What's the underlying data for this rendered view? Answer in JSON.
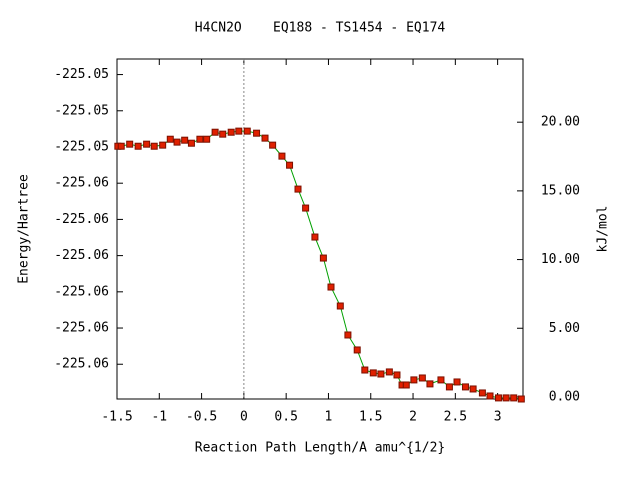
{
  "chart_data": {
    "type": "line",
    "title": "H4CN2O    EQ188 - TS1454 - EQ174",
    "xlabel": "Reaction Path Length/A amu^{1/2}",
    "ylabel": "Energy/Hartree",
    "y2label": "kJ/mol",
    "xlim": [
      -1.5,
      3.3
    ],
    "xticks": [
      -1.5,
      -1,
      -0.5,
      0,
      0.5,
      1,
      1.5,
      2,
      2.5,
      3
    ],
    "ylim": [
      -225.06096,
      -225.05157
    ],
    "yticks": [
      {
        "value": -225.052,
        "label": "-225.05"
      },
      {
        "value": -225.053,
        "label": "-225.05"
      },
      {
        "value": -225.054,
        "label": "-225.05"
      },
      {
        "value": -225.055,
        "label": "-225.06"
      },
      {
        "value": -225.056,
        "label": "-225.06"
      },
      {
        "value": -225.057,
        "label": "-225.06"
      },
      {
        "value": -225.058,
        "label": "-225.06"
      },
      {
        "value": -225.059,
        "label": "-225.06"
      },
      {
        "value": -225.06,
        "label": "-225.06"
      }
    ],
    "y2lim": [
      -0.15,
      24.6
    ],
    "y2ticks": [
      {
        "value": 0,
        "label": "0.00"
      },
      {
        "value": 5,
        "label": "5.00"
      },
      {
        "value": 10,
        "label": "10.00"
      },
      {
        "value": 15,
        "label": "15.00"
      },
      {
        "value": 20,
        "label": "20.00"
      }
    ],
    "reference_line_x": 0,
    "series": [
      {
        "axis": "y2",
        "color": "#00a000",
        "marker_color": "#e02000",
        "x": [
          -1.49,
          -1.45,
          -1.35,
          -1.25,
          -1.15,
          -1.06,
          -0.96,
          -0.87,
          -0.79,
          -0.7,
          -0.62,
          -0.52,
          -0.44,
          -0.34,
          -0.25,
          -0.15,
          -0.06,
          0.04,
          0.15,
          0.25,
          0.34,
          0.45,
          0.54,
          0.64,
          0.73,
          0.84,
          0.94,
          1.03,
          1.14,
          1.23,
          1.34,
          1.43,
          1.53,
          1.62,
          1.72,
          1.81,
          1.87,
          1.92,
          2.01,
          2.11,
          2.2,
          2.33,
          2.43,
          2.52,
          2.62,
          2.71,
          2.82,
          2.91,
          3.01,
          3.1,
          3.19,
          3.28
        ],
        "values": [
          18.25,
          18.25,
          18.4,
          18.25,
          18.4,
          18.25,
          18.33,
          18.76,
          18.55,
          18.69,
          18.47,
          18.76,
          18.76,
          19.27,
          19.13,
          19.27,
          19.35,
          19.35,
          19.2,
          18.84,
          18.33,
          17.53,
          16.87,
          15.13,
          13.75,
          11.64,
          10.11,
          8.0,
          6.62,
          4.51,
          3.42,
          1.96,
          1.75,
          1.67,
          1.82,
          1.6,
          0.87,
          0.87,
          1.24,
          1.38,
          0.95,
          1.24,
          0.73,
          1.09,
          0.73,
          0.58,
          0.29,
          0.07,
          -0.07,
          -0.07,
          -0.07,
          -0.15
        ]
      }
    ]
  }
}
